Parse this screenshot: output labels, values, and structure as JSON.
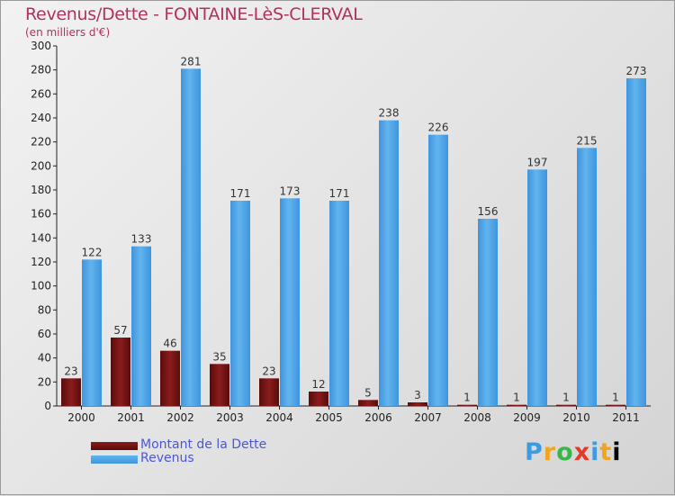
{
  "title": "Revenus/Dette - FONTAINE-LèS-CLERVAL",
  "subtitle": "(en milliers d'€)",
  "brand": [
    "P",
    "r",
    "o",
    "x",
    "i",
    "t",
    "i"
  ],
  "colors": {
    "debt": "#7a1515",
    "revenue": "#4ca3e6",
    "title": "#b03060",
    "legend_text": "#4a57d6"
  },
  "chart_data": {
    "type": "bar",
    "categories": [
      "2000",
      "2001",
      "2002",
      "2003",
      "2004",
      "2005",
      "2006",
      "2007",
      "2008",
      "2009",
      "2010",
      "2011"
    ],
    "series": [
      {
        "name": "Montant de la Dette",
        "values": [
          23,
          57,
          46,
          35,
          23,
          12,
          5,
          3,
          1,
          1,
          1,
          1
        ]
      },
      {
        "name": "Revenus",
        "values": [
          122,
          133,
          281,
          171,
          173,
          171,
          238,
          226,
          156,
          197,
          215,
          273
        ]
      }
    ],
    "ylim": [
      0,
      300
    ],
    "yticks": [
      0,
      20,
      40,
      60,
      80,
      100,
      120,
      140,
      160,
      180,
      200,
      220,
      240,
      260,
      280,
      300
    ],
    "grid": false,
    "legend": "bottom-left"
  }
}
